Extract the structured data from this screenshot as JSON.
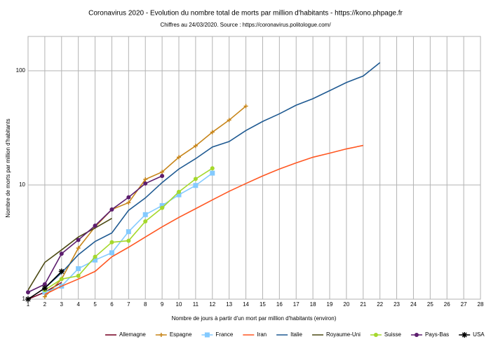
{
  "chart_data": {
    "type": "line",
    "title": "Coronavirus 2020 - Evolution du nombre total de morts par million d'habitants - https://kono.phpage.fr",
    "subtitle": "Chiffres au 24/03/2020. Source : https://coronavirus.politologue.com/",
    "x_label": "Nombre de jours à partir d'un mort par million d'habitants (environ)",
    "y_label": "Nombre de morts par million d'habitants",
    "xlim": [
      1,
      28
    ],
    "xticks": [
      1,
      2,
      3,
      4,
      5,
      6,
      7,
      8,
      9,
      10,
      11,
      12,
      13,
      14,
      15,
      16,
      17,
      18,
      19,
      20,
      21,
      22,
      23,
      24,
      25,
      26,
      27,
      28
    ],
    "ylim": [
      1,
      200
    ],
    "yticks": [
      1,
      10,
      100
    ],
    "y_log": true,
    "grid": true,
    "legend": "bottom",
    "series": [
      {
        "name": "Allemagne",
        "color": "#7b0c2b",
        "marker": "none",
        "x": [
          1,
          2,
          3
        ],
        "values": [
          1.0,
          1.15,
          1.4
        ]
      },
      {
        "name": "Espagne",
        "color": "#c7851a",
        "marker": "plus",
        "x": [
          2,
          3,
          4,
          5,
          6,
          7,
          8,
          9,
          10,
          11,
          12,
          13,
          14
        ],
        "values": [
          1.05,
          1.5,
          2.8,
          4.3,
          6.1,
          7.0,
          11.2,
          13,
          17.5,
          22,
          29,
          37,
          49
        ]
      },
      {
        "name": "France",
        "color": "#83caff",
        "marker": "square",
        "x": [
          2,
          3,
          4,
          5,
          6,
          7,
          8,
          9,
          10,
          11,
          12
        ],
        "values": [
          1.15,
          1.3,
          1.85,
          2.2,
          2.55,
          3.9,
          5.5,
          6.6,
          8.2,
          9.9,
          12.7
        ]
      },
      {
        "name": "Iran",
        "color": "#ff5722",
        "marker": "none",
        "x": [
          2,
          3,
          4,
          5,
          6,
          7,
          8,
          9,
          10,
          11,
          12,
          13,
          14,
          15,
          16,
          17,
          18,
          19,
          20,
          21
        ],
        "values": [
          1.1,
          1.3,
          1.5,
          1.75,
          2.35,
          2.85,
          3.5,
          4.3,
          5.2,
          6.2,
          7.4,
          8.8,
          10.3,
          12,
          13.8,
          15.6,
          17.5,
          19,
          20.7,
          22.2
        ]
      },
      {
        "name": "Italie",
        "color": "#1f5a92",
        "marker": "none",
        "x": [
          2,
          3,
          4,
          5,
          6,
          7,
          8,
          9,
          10,
          11,
          12,
          13,
          14,
          15,
          16,
          17,
          18,
          19,
          20,
          21,
          22
        ],
        "values": [
          1.25,
          1.7,
          2.45,
          3.2,
          3.8,
          6.0,
          7.7,
          10.5,
          13.8,
          17,
          21.5,
          24,
          30,
          36,
          42,
          50,
          57,
          67,
          79,
          90,
          118
        ]
      },
      {
        "name": "Royaume-Uni",
        "color": "#4c4a14",
        "marker": "none",
        "x": [
          1,
          2,
          3,
          4,
          5,
          6
        ],
        "values": [
          1.2,
          2.1,
          2.7,
          3.5,
          4.2,
          5.1
        ]
      },
      {
        "name": "Suisse",
        "color": "#a5d82c",
        "marker": "circle",
        "x": [
          2,
          3,
          4,
          5,
          6,
          7,
          8,
          9,
          10,
          11,
          12
        ],
        "values": [
          1.2,
          1.5,
          1.6,
          2.35,
          3.15,
          3.25,
          4.8,
          6.3,
          8.7,
          11.3,
          14
        ]
      },
      {
        "name": "Pays-Bas",
        "color": "#5c1d6e",
        "marker": "circle",
        "x": [
          1,
          2,
          3,
          4,
          5,
          6,
          7,
          8,
          9
        ],
        "values": [
          1.15,
          1.35,
          2.5,
          3.3,
          4.4,
          6.1,
          7.8,
          10.3,
          12
        ]
      },
      {
        "name": "USA",
        "color": "#000000",
        "marker": "star",
        "x": [
          1,
          2,
          3
        ],
        "values": [
          1.0,
          1.25,
          1.75
        ]
      }
    ]
  }
}
